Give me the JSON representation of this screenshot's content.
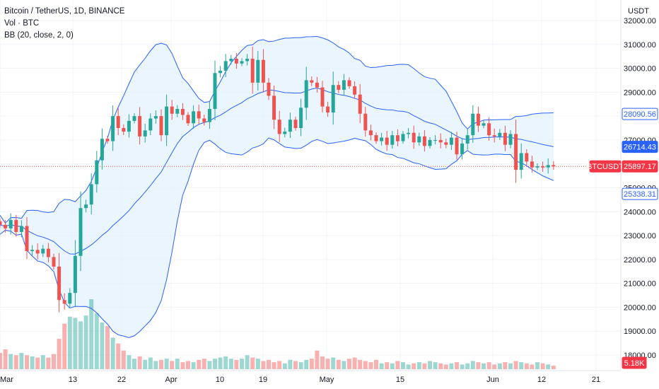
{
  "legend": {
    "title": "Bitcoin / TetherUS, 1D, BINANCE",
    "vol": "Vol · BTC",
    "bb": "BB (20, close, 2, 0)"
  },
  "axis": {
    "currency": "USDT",
    "y_ticks": [
      "32000.00",
      "31000.00",
      "30000.00",
      "29000.00",
      "28000.00",
      "27000.00",
      "26000.00",
      "25000.00",
      "24000.00",
      "23000.00",
      "22000.00",
      "21000.00",
      "20000.00",
      "19000.00",
      "18000.00"
    ],
    "x_ticks": [
      "Mar",
      "13",
      "22",
      "Apr",
      "10",
      "19",
      "May",
      "15",
      "Jun",
      "12",
      "21"
    ]
  },
  "badges": [
    {
      "name": "bb-upper-badge",
      "text": "28090.56",
      "value": 28090.56,
      "color": "#2962ff",
      "style": "outline"
    },
    {
      "name": "bb-basis-badge",
      "text": "26714.43",
      "value": 26714.43,
      "color": "#2962ff",
      "style": "fill"
    },
    {
      "name": "symbol-label",
      "text": "BTCUSDT",
      "value": 25897.17,
      "color": "#f23645",
      "style": "fill"
    },
    {
      "name": "last-price-badge",
      "text": "25897.17",
      "value": 25897.17,
      "color": "#f23645",
      "style": "fill"
    },
    {
      "name": "bb-lower-badge",
      "text": "25338.31",
      "value": 25338.31,
      "color": "#2962ff",
      "style": "outline"
    },
    {
      "name": "volume-badge",
      "text": "5.18K",
      "value": null,
      "color": "#f23645",
      "style": "fill"
    }
  ],
  "colors": {
    "up": "#26a69a",
    "down": "#ef5350",
    "band": "#2962ff"
  },
  "chart_data": {
    "type": "candlestick",
    "symbol": "BTCUSDT",
    "exchange": "BINANCE",
    "interval": "1D",
    "last_price": 25897.17,
    "ylim": [
      17700,
      32150
    ],
    "bands": {
      "upper": 28090.56,
      "basis": 26714.43,
      "lower": 25338.31
    },
    "closes": [
      23450,
      23300,
      23650,
      23150,
      23400,
      22350,
      22400,
      22250,
      22450,
      22100,
      21700,
      20300,
      20150,
      20600,
      22150,
      24150,
      24300,
      25150,
      26150,
      27050,
      26950,
      28000,
      27500,
      27350,
      27800,
      28000,
      27150,
      27400,
      27900,
      28000,
      27200,
      28400,
      28100,
      28300,
      28050,
      27700,
      28200,
      27900,
      27750,
      28300,
      29800,
      29900,
      30300,
      30400,
      30200,
      30300,
      30400,
      29400,
      30350,
      29400,
      28850,
      27850,
      27250,
      27350,
      27850,
      27500,
      28350,
      29500,
      29400,
      29200,
      28400,
      28150,
      29300,
      29100,
      29500,
      29250,
      28900,
      28100,
      27400,
      27200,
      26950,
      27100,
      26800,
      27200,
      26950,
      27250,
      27300,
      26900,
      27150,
      26750,
      27000,
      27000,
      26900,
      26800,
      27100,
      26400,
      26850,
      27200,
      28100,
      27600,
      27700,
      27200,
      27150,
      27300,
      26800,
      27250,
      25750,
      26450,
      26100,
      25850,
      25900,
      25850,
      25950,
      25897
    ],
    "volumes": [
      1.4,
      1.7,
      1.3,
      1.2,
      1.4,
      1.2,
      1.1,
      1.0,
      1.2,
      1.0,
      1.3,
      2.6,
      3.9,
      4.5,
      4.4,
      4.1,
      4.6,
      6.0,
      4.8,
      4.0,
      3.7,
      2.7,
      2.2,
      1.6,
      1.2,
      0.9,
      1.1,
      0.8,
      1.0,
      0.7,
      0.8,
      0.9,
      0.7,
      0.9,
      0.6,
      0.7,
      0.6,
      0.8,
      0.9,
      0.7,
      0.9,
      1.0,
      1.1,
      0.9,
      0.8,
      0.9,
      1.2,
      1.0,
      0.9,
      0.7,
      0.8,
      0.6,
      0.7,
      0.5,
      0.8,
      0.7,
      0.6,
      0.8,
      0.9,
      1.6,
      1.1,
      0.9,
      1.0,
      0.8,
      0.7,
      0.9,
      1.0,
      0.8,
      0.7,
      0.6,
      0.8,
      0.5,
      0.6,
      0.5,
      0.7,
      0.6,
      0.4,
      0.5,
      0.6,
      0.5,
      0.7,
      0.6,
      0.5,
      0.4,
      0.5,
      0.6,
      0.4,
      0.5,
      0.7,
      0.6,
      0.5,
      0.6,
      0.4,
      0.5,
      0.6,
      0.5,
      0.7,
      0.6,
      0.5,
      0.4,
      0.6,
      0.5,
      0.4,
      0.3
    ]
  }
}
